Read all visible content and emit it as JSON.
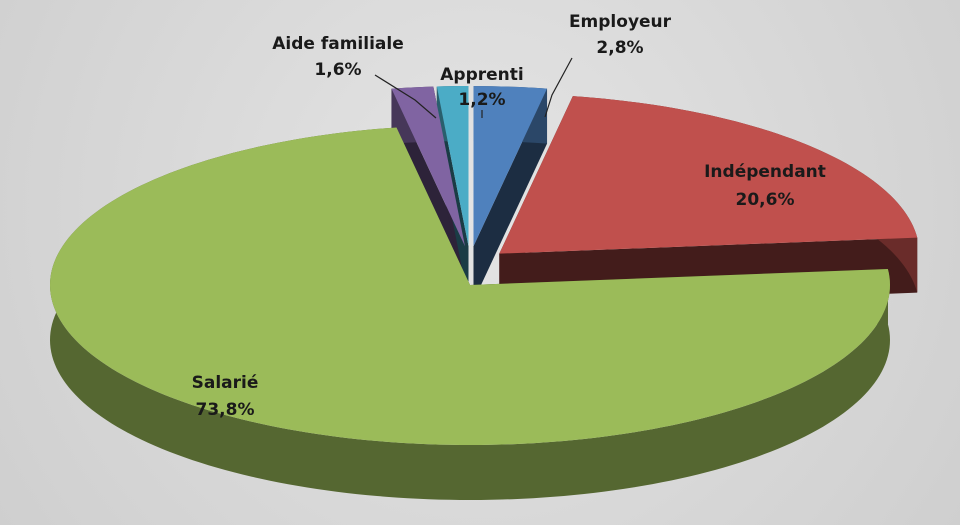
{
  "chart_data": {
    "type": "pie",
    "categories": [
      "Employeur",
      "Indépendant",
      "Salarié",
      "Aide familiale",
      "Apprenti"
    ],
    "values": [
      2.8,
      20.6,
      73.8,
      1.6,
      1.2
    ],
    "value_labels": [
      "2,8%",
      "20,6%",
      "73,8%",
      "1,6%",
      "1,2%"
    ],
    "colors": [
      "#4f81bd",
      "#c0504d",
      "#9bbb59",
      "#8064a2",
      "#4bacc6"
    ]
  }
}
